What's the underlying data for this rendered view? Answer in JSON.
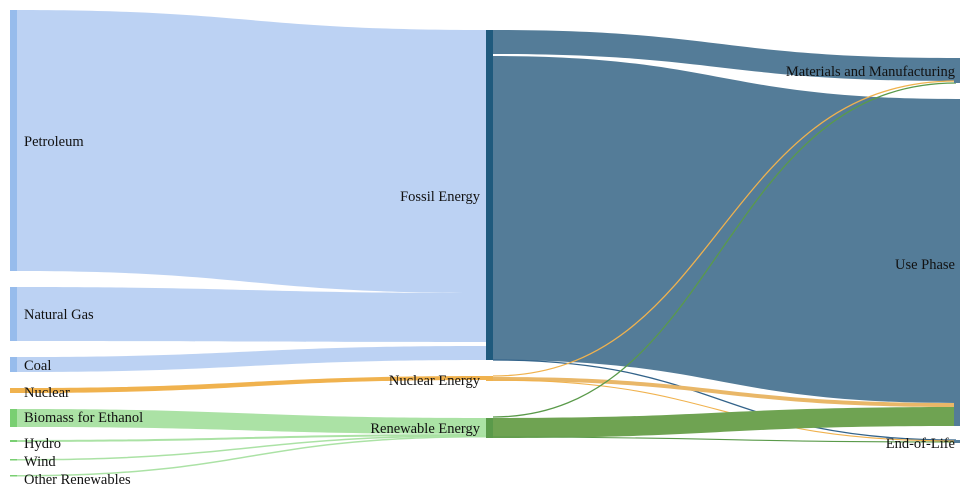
{
  "colors": {
    "fossil_source": "#b8d0f2",
    "fossil_node_bar": "#97bcec",
    "fossil_hub": "#1f5a7d",
    "fossil_flow": "#547c98",
    "nuclear": "#f0b24e",
    "nuclear_flow": "#e9b768",
    "renewable_source": "#a6e0a0",
    "renewable_node_bar": "#79cf72",
    "renewable_hub": "#5a9a4a",
    "renewable_flow": "#6fa352",
    "eol_line_blue": "#33638a"
  },
  "nodes": {
    "petroleum": "Petroleum",
    "natural_gas": "Natural Gas",
    "coal": "Coal",
    "nuclear": "Nuclear",
    "biomass": "Biomass for Ethanol",
    "hydro": "Hydro",
    "wind": "Wind",
    "other_renewables": "Other Renewables",
    "fossil_energy": "Fossil Energy",
    "nuclear_energy": "Nuclear Energy",
    "renewable_energy": "Renewable Energy",
    "materials": "Materials and Manufacturing",
    "use_phase": "Use Phase",
    "end_of_life": "End-of-Life"
  }
}
